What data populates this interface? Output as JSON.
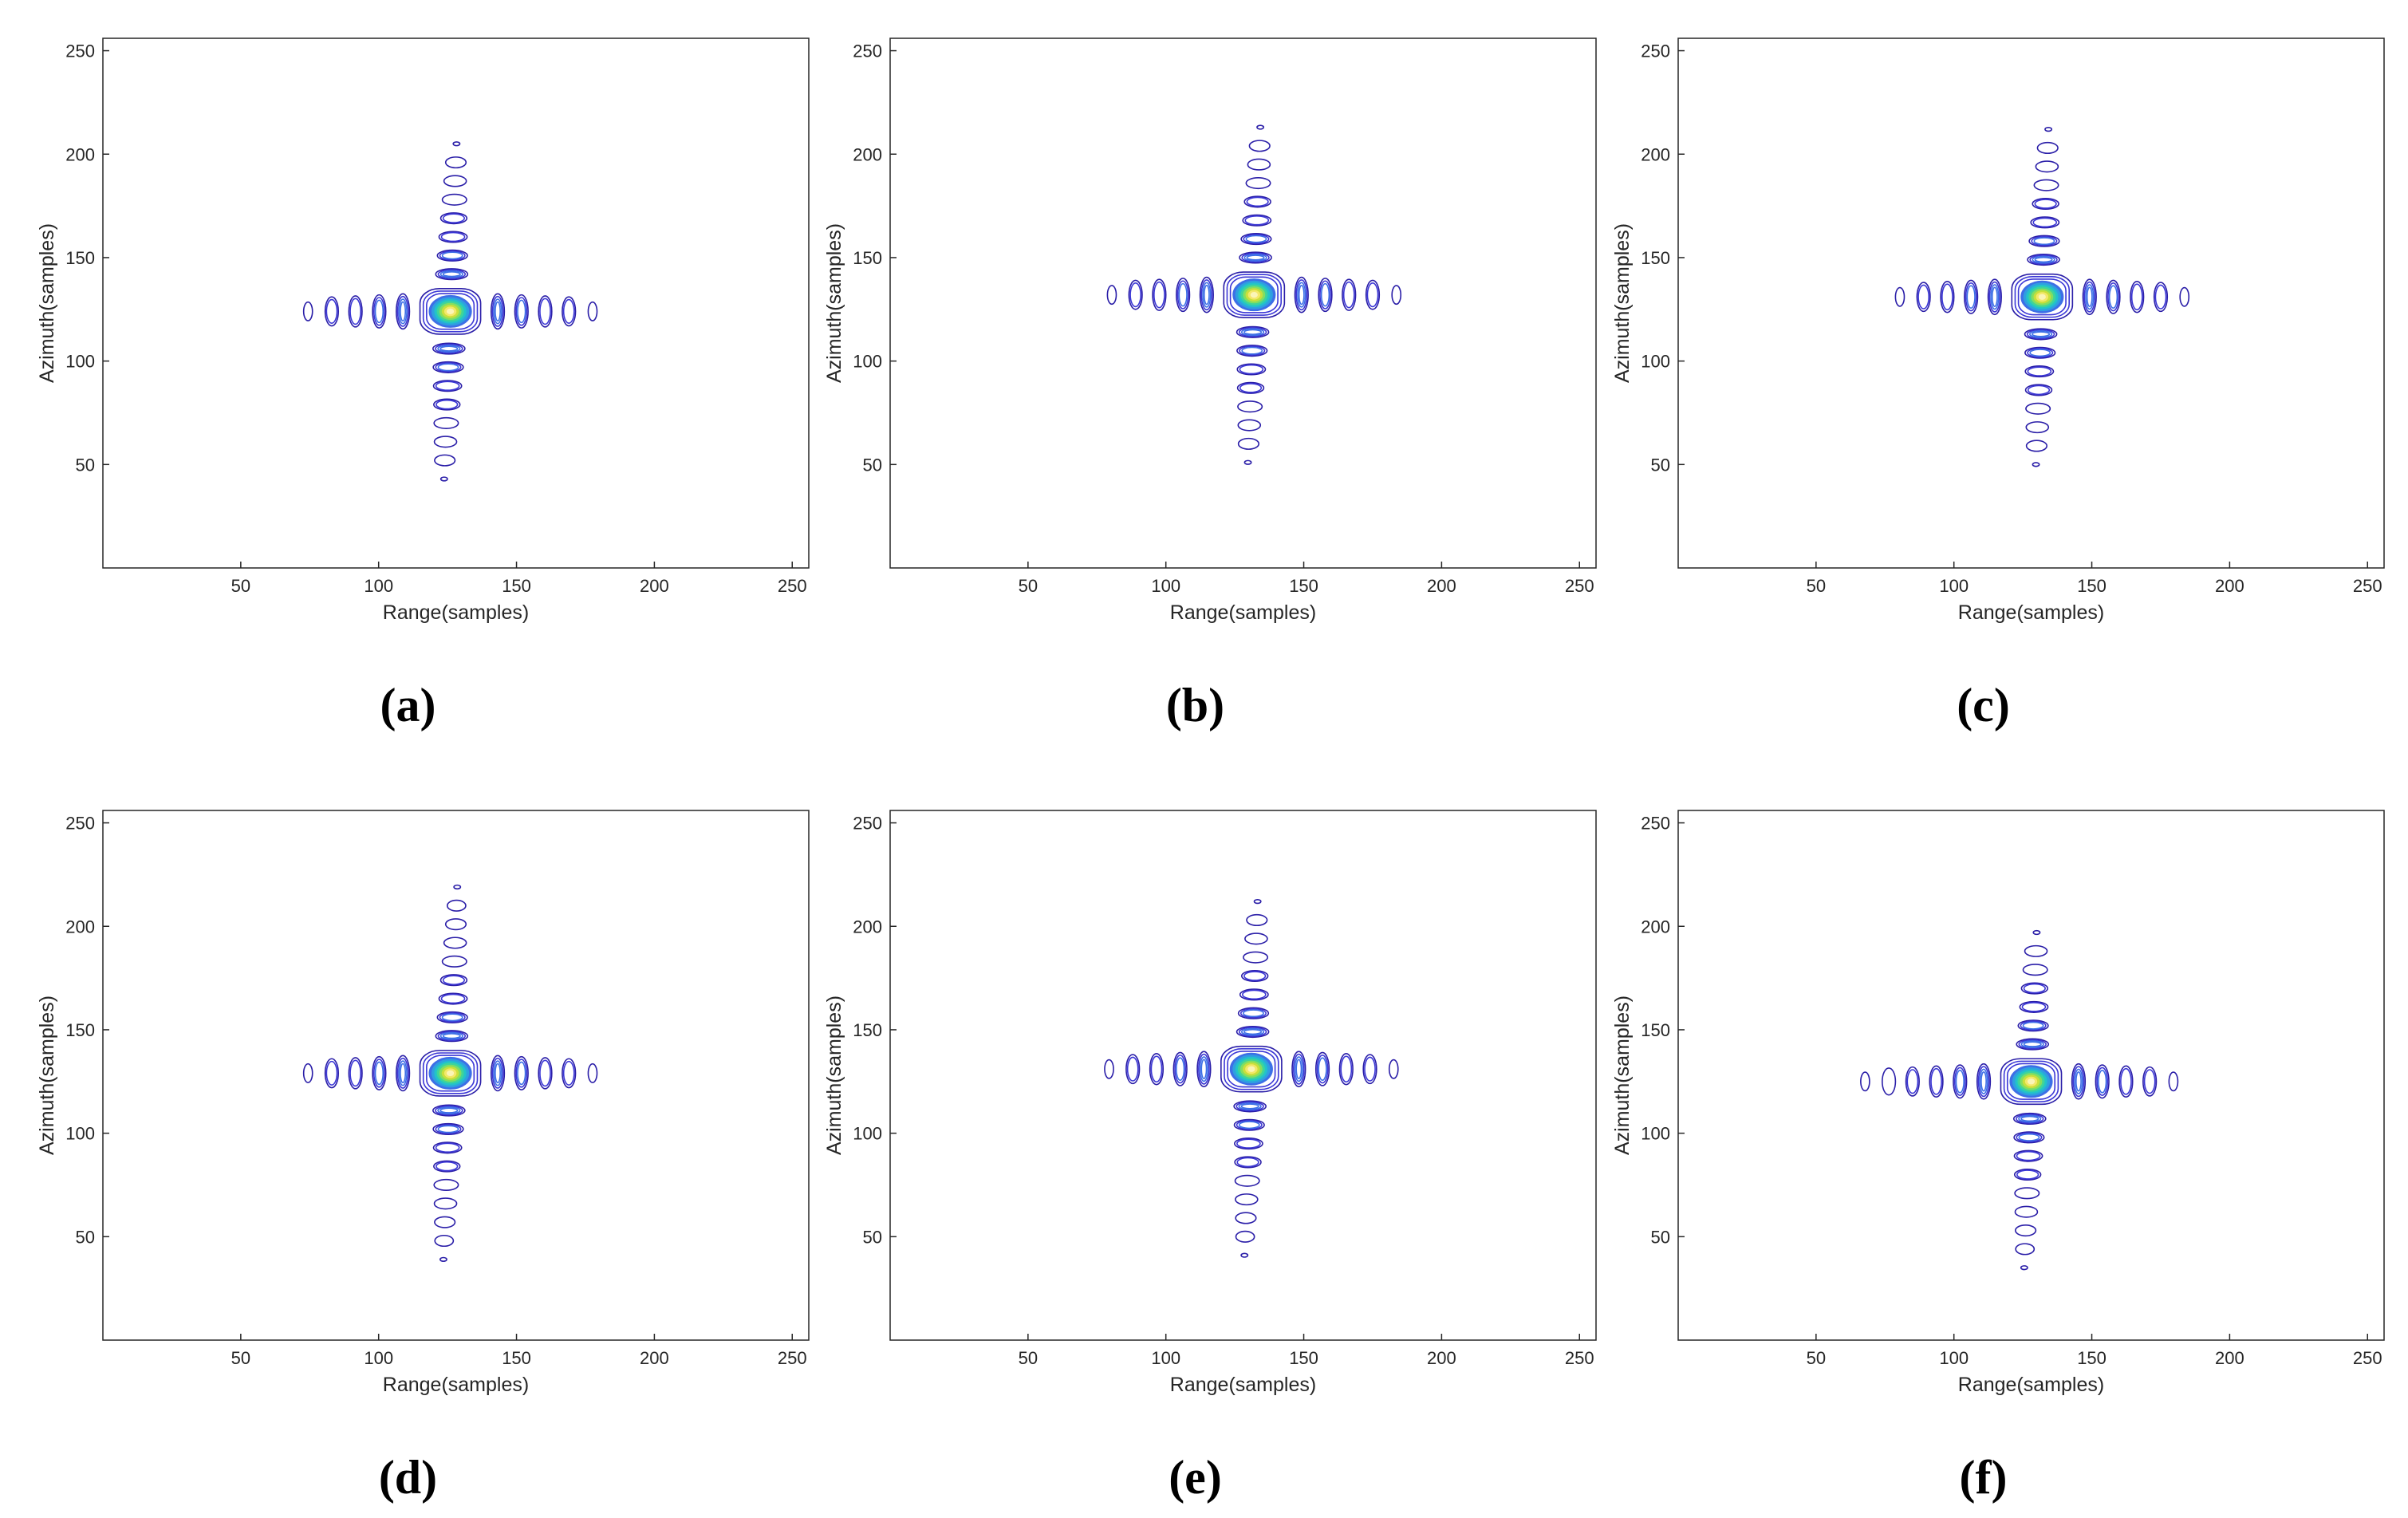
{
  "figure": {
    "panel_count": 6,
    "contour_colors": [
      "#2a1ea8",
      "#3b37d6",
      "#3d6fe6",
      "#2f9fe0",
      "#22c3c9",
      "#3fd49a",
      "#83de61",
      "#c9df3c",
      "#f4e86a",
      "#fbf5b8"
    ]
  },
  "chart_data": [
    {
      "type": "contour",
      "caption": "(a)",
      "xlabel": "Range(samples)",
      "ylabel": "Azimuth(samples)",
      "xlim": [
        0,
        256
      ],
      "ylim": [
        0,
        256
      ],
      "xticks": [
        50,
        100,
        150,
        200,
        250
      ],
      "yticks": [
        50,
        100,
        150,
        200,
        250
      ],
      "peak": {
        "range": 126,
        "azimuth": 124
      },
      "range_sidelobe_extent": [
        74,
        179
      ],
      "azimuth_sidelobe_extent": [
        47,
        202
      ]
    },
    {
      "type": "contour",
      "caption": "(b)",
      "xlabel": "Range(samples)",
      "ylabel": "Azimuth(samples)",
      "xlim": [
        0,
        256
      ],
      "ylim": [
        0,
        256
      ],
      "xticks": [
        50,
        100,
        150,
        200,
        250
      ],
      "yticks": [
        50,
        100,
        150,
        200,
        250
      ],
      "peak": {
        "range": 132,
        "azimuth": 132
      },
      "range_sidelobe_extent": [
        79,
        185
      ],
      "azimuth_sidelobe_extent": [
        55,
        210
      ]
    },
    {
      "type": "contour",
      "caption": "(c)",
      "xlabel": "Range(samples)",
      "ylabel": "Azimuth(samples)",
      "xlim": [
        0,
        256
      ],
      "ylim": [
        0,
        256
      ],
      "xticks": [
        50,
        100,
        150,
        200,
        250
      ],
      "yticks": [
        50,
        100,
        150,
        200,
        250
      ],
      "peak": {
        "range": 132,
        "azimuth": 131
      },
      "range_sidelobe_extent": [
        78,
        184
      ],
      "azimuth_sidelobe_extent": [
        54,
        209
      ]
    },
    {
      "type": "contour",
      "caption": "(d)",
      "xlabel": "Range(samples)",
      "ylabel": "Azimuth(samples)",
      "xlim": [
        0,
        256
      ],
      "ylim": [
        0,
        256
      ],
      "xticks": [
        50,
        100,
        150,
        200,
        250
      ],
      "yticks": [
        50,
        100,
        150,
        200,
        250
      ],
      "peak": {
        "range": 126,
        "azimuth": 129
      },
      "range_sidelobe_extent": [
        74,
        179
      ],
      "azimuth_sidelobe_extent": [
        38,
        220
      ]
    },
    {
      "type": "contour",
      "caption": "(e)",
      "xlabel": "Range(samples)",
      "ylabel": "Azimuth(samples)",
      "xlim": [
        0,
        256
      ],
      "ylim": [
        0,
        256
      ],
      "xticks": [
        50,
        100,
        150,
        200,
        250
      ],
      "yticks": [
        50,
        100,
        150,
        200,
        250
      ],
      "peak": {
        "range": 131,
        "azimuth": 131
      },
      "range_sidelobe_extent": [
        78,
        184
      ],
      "azimuth_sidelobe_extent": [
        41,
        208
      ]
    },
    {
      "type": "contour",
      "caption": "(f)",
      "xlabel": "Range(samples)",
      "ylabel": "Azimuth(samples)",
      "xlim": [
        0,
        256
      ],
      "ylim": [
        0,
        256
      ],
      "xticks": [
        50,
        100,
        150,
        200,
        250
      ],
      "yticks": [
        50,
        100,
        150,
        200,
        250
      ],
      "peak": {
        "range": 128,
        "azimuth": 125
      },
      "range_sidelobe_extent": [
        67,
        182
      ],
      "azimuth_sidelobe_extent": [
        37,
        201
      ]
    }
  ]
}
